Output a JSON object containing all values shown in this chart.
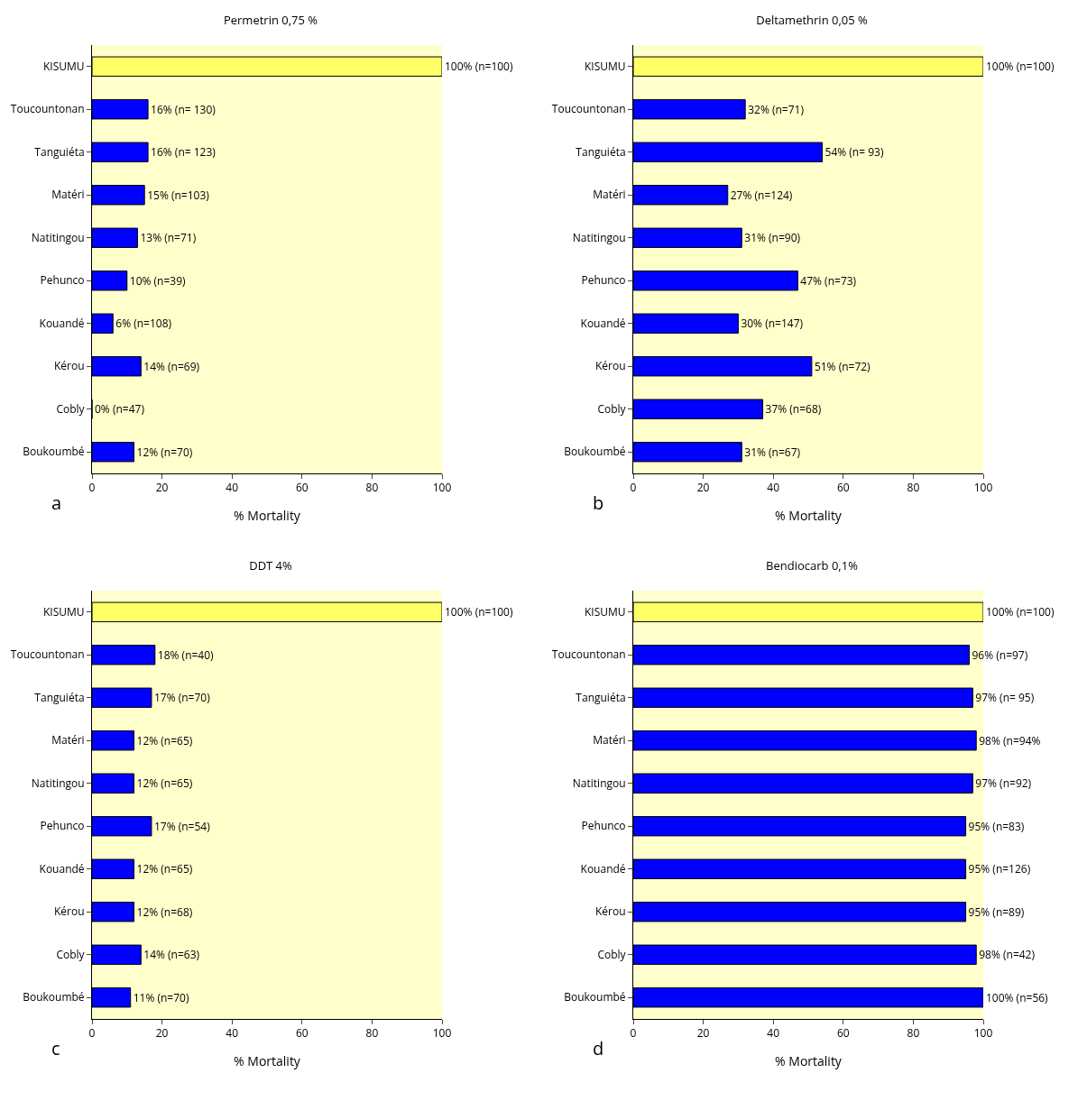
{
  "chart_data": [
    {
      "type": "bar",
      "orientation": "horizontal",
      "title": "Permetrin 0,75 %",
      "xlabel": "% Mortality",
      "annotations": [
        "a"
      ],
      "categories": [
        "KISUMU",
        "Toucountonan",
        "Tanguiéta",
        "Matéri",
        "Natitingou",
        "Pehunco",
        "Kouandé",
        "Kérou",
        "Cobly",
        "Boukoumbé"
      ],
      "values": [
        100,
        16,
        16,
        15,
        13,
        10,
        6,
        14,
        0,
        12
      ],
      "colors": [
        "#ffff66",
        "#0000ff",
        "#0000ff",
        "#0000ff",
        "#0000ff",
        "#0000ff",
        "#0000ff",
        "#0000ff",
        "#0000ff",
        "#0000ff"
      ],
      "value_labels": [
        "100% (n=100)",
        "16% (n= 130)",
        "16% (n= 123)",
        "15% (n=103)",
        "13% (n=71)",
        "10% (n=39)",
        "6% (n=108)",
        "14% (n=69)",
        "0% (n=47)",
        "12% (n=70)"
      ],
      "xlim": [
        0,
        100
      ],
      "xticks": [
        0,
        20,
        40,
        60,
        80,
        100
      ]
    },
    {
      "type": "bar",
      "orientation": "horizontal",
      "title": "Deltamethrin 0,05 %",
      "xlabel": "% Mortality",
      "annotations": [
        "b"
      ],
      "categories": [
        "KISUMU",
        "Toucountonan",
        "Tanguiéta",
        "Matéri",
        "Natitingou",
        "Pehunco",
        "Kouandé",
        "Kérou",
        "Cobly",
        "Boukoumbé"
      ],
      "values": [
        100,
        32,
        54,
        27,
        31,
        47,
        30,
        51,
        37,
        31
      ],
      "colors": [
        "#ffff66",
        "#0000ff",
        "#0000ff",
        "#0000ff",
        "#0000ff",
        "#0000ff",
        "#0000ff",
        "#0000ff",
        "#0000ff",
        "#0000ff"
      ],
      "value_labels": [
        "100% (n=100)",
        "32% (n=71)",
        "54% (n= 93)",
        "27% (n=124)",
        "31% (n=90)",
        "47% (n=73)",
        "30% (n=147)",
        "51% (n=72)",
        "37% (n=68)",
        "31% (n=67)"
      ],
      "xlim": [
        0,
        100
      ],
      "xticks": [
        0,
        20,
        40,
        60,
        80,
        100
      ]
    },
    {
      "type": "bar",
      "orientation": "horizontal",
      "title": "DDT 4%",
      "xlabel": "% Mortality",
      "annotations": [
        "c"
      ],
      "categories": [
        "KISUMU",
        "Toucountonan",
        "Tanguiéta",
        "Matéri",
        "Natitingou",
        "Pehunco",
        "Kouandé",
        "Kérou",
        "Cobly",
        "Boukoumbé"
      ],
      "values": [
        100,
        18,
        17,
        12,
        12,
        17,
        12,
        12,
        14,
        11
      ],
      "colors": [
        "#ffff66",
        "#0000ff",
        "#0000ff",
        "#0000ff",
        "#0000ff",
        "#0000ff",
        "#0000ff",
        "#0000ff",
        "#0000ff",
        "#0000ff"
      ],
      "value_labels": [
        "100% (n=100)",
        "18% (n=40)",
        "17% (n=70)",
        "12% (n=65)",
        "12% (n=65)",
        "17% (n=54)",
        "12% (n=65)",
        "12% (n=68)",
        "14% (n=63)",
        "11% (n=70)"
      ],
      "xlim": [
        0,
        100
      ],
      "xticks": [
        0,
        20,
        40,
        60,
        80,
        100
      ]
    },
    {
      "type": "bar",
      "orientation": "horizontal",
      "title": "Bendiocarb 0,1%",
      "xlabel": "% Mortality",
      "annotations": [
        "d"
      ],
      "categories": [
        "KISUMU",
        "Toucountonan",
        "Tanguiéta",
        "Matéri",
        "Natitingou",
        "Pehunco",
        "Kouandé",
        "Kérou",
        "Cobly",
        "Boukoumbé"
      ],
      "values": [
        100,
        96,
        97,
        98,
        97,
        95,
        95,
        95,
        98,
        100
      ],
      "colors": [
        "#ffff66",
        "#0000ff",
        "#0000ff",
        "#0000ff",
        "#0000ff",
        "#0000ff",
        "#0000ff",
        "#0000ff",
        "#0000ff",
        "#0000ff"
      ],
      "value_labels": [
        "100% (n=100)",
        "96% (n=97)",
        "97% (n= 95)",
        "98% (n=94%",
        "97% (n=92)",
        "95% (n=83)",
        "95% (n=126)",
        "95% (n=89)",
        "98% (n=42)",
        "100% (n=56)"
      ],
      "xlim": [
        0,
        100
      ],
      "xticks": [
        0,
        20,
        40,
        60,
        80,
        100
      ]
    }
  ]
}
